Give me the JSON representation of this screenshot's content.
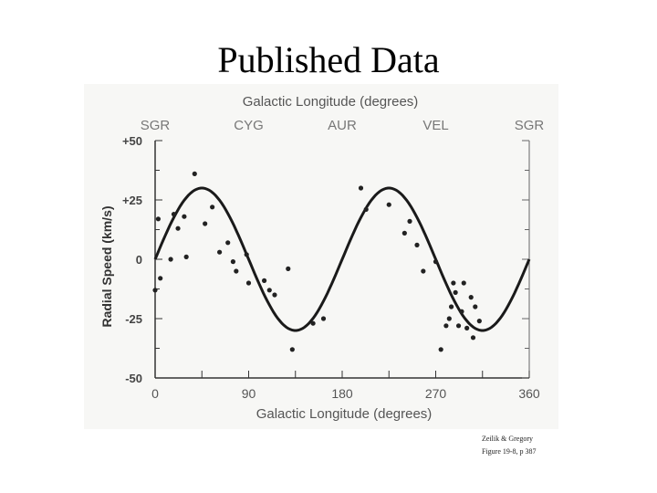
{
  "slide": {
    "title": "Published Data",
    "credit_line1": "Zeilik & Gregory",
    "credit_line2": "Figure 19-8, p 387"
  },
  "chart_data": {
    "type": "scatter",
    "title": "",
    "top_axis_title": "Galactic Longitude (degrees)",
    "top_labels": [
      {
        "x": 0,
        "label": "SGR"
      },
      {
        "x": 90,
        "label": "CYG"
      },
      {
        "x": 180,
        "label": "AUR"
      },
      {
        "x": 270,
        "label": "VEL"
      },
      {
        "x": 360,
        "label": "SGR"
      }
    ],
    "xlabel": "Galactic Longitude (degrees)",
    "ylabel": "Radial Speed (km/s)",
    "xlim": [
      0,
      360
    ],
    "ylim": [
      -50,
      50
    ],
    "xticks": [
      0,
      90,
      180,
      270,
      360
    ],
    "yticks": [
      50,
      25,
      0,
      -25,
      -50
    ],
    "ytick_labels": [
      "+50",
      "+25",
      "0",
      "-25",
      "-50"
    ],
    "curve": {
      "amplitude": 30,
      "period_deg": 180,
      "formula": "v = 30 sin(2l)"
    },
    "colors": {
      "points": "#222222",
      "curve": "#1a1a1a",
      "axes": "#333333"
    },
    "series": [
      {
        "points": [
          [
            0,
            -13
          ],
          [
            3,
            17
          ],
          [
            5,
            -8
          ],
          [
            15,
            0
          ],
          [
            18,
            19
          ],
          [
            22,
            13
          ],
          [
            28,
            18
          ],
          [
            30,
            1
          ],
          [
            38,
            36
          ],
          [
            48,
            15
          ],
          [
            55,
            22
          ],
          [
            62,
            3
          ],
          [
            70,
            7
          ],
          [
            75,
            -1
          ],
          [
            78,
            -5
          ],
          [
            88,
            2
          ],
          [
            90,
            -10
          ],
          [
            105,
            -9
          ],
          [
            110,
            -13
          ],
          [
            115,
            -15
          ],
          [
            128,
            -4
          ],
          [
            132,
            -38
          ],
          [
            152,
            -27
          ],
          [
            162,
            -25
          ],
          [
            198,
            30
          ],
          [
            203,
            21
          ],
          [
            225,
            23
          ],
          [
            240,
            11
          ],
          [
            245,
            16
          ],
          [
            252,
            6
          ],
          [
            258,
            -5
          ],
          [
            270,
            -1
          ],
          [
            275,
            -38
          ],
          [
            280,
            -28
          ],
          [
            283,
            -25
          ],
          [
            285,
            -20
          ],
          [
            287,
            -10
          ],
          [
            289,
            -14
          ],
          [
            292,
            -28
          ],
          [
            295,
            -22
          ],
          [
            297,
            -10
          ],
          [
            300,
            -29
          ],
          [
            304,
            -16
          ],
          [
            306,
            -33
          ],
          [
            308,
            -20
          ],
          [
            312,
            -26
          ]
        ]
      }
    ]
  }
}
